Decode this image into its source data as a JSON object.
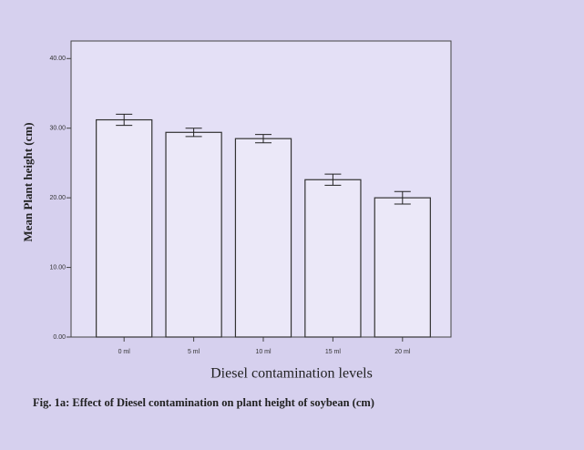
{
  "chart_data": {
    "type": "bar",
    "y_label": "Mean Plant height (cm)",
    "x_label": "Diesel contamination levels",
    "caption": "Fig. 1a: Effect of Diesel contamination on plant height of soybean (cm)",
    "categories": [
      "0 ml",
      "5 ml",
      "10 ml",
      "15 ml",
      "20 ml"
    ],
    "values": [
      31.2,
      29.4,
      28.5,
      22.6,
      20.0
    ],
    "errors": [
      0.8,
      0.6,
      0.6,
      0.8,
      0.9
    ],
    "color": "#ebe8f8",
    "ylim": [
      0,
      42
    ],
    "yticks": [
      {
        "value": 0,
        "label": "0.00"
      },
      {
        "value": 10,
        "label": "10.00"
      },
      {
        "value": 20,
        "label": "20.00"
      },
      {
        "value": 30,
        "label": "30.00"
      },
      {
        "value": 40,
        "label": "40.00"
      }
    ]
  }
}
